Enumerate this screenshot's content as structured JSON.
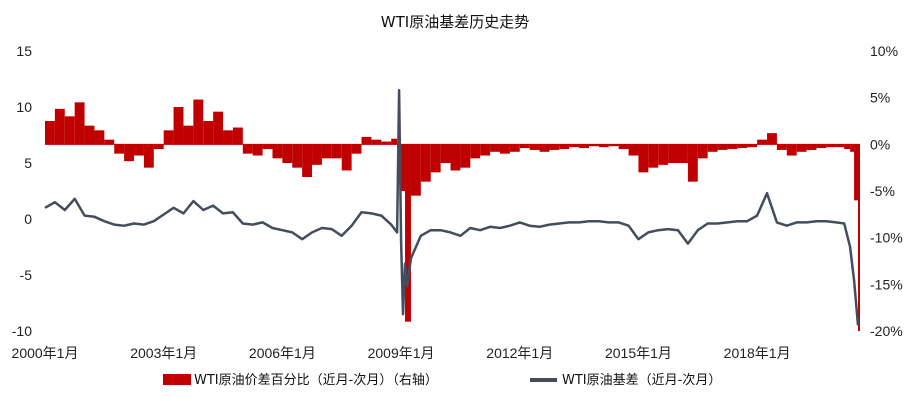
{
  "chart_data": {
    "type": "bar+line",
    "title": "WTI原油基差历史走势",
    "x_ticks": [
      "2000年1月",
      "2003年1月",
      "2006年1月",
      "2009年1月",
      "2012年1月",
      "2015年1月",
      "2018年1月"
    ],
    "x_range": [
      2000.0,
      2020.6
    ],
    "left_axis": {
      "ticks": [
        "15",
        "10",
        "5",
        "0",
        "-5",
        "-10"
      ],
      "ylim": [
        -10,
        15
      ]
    },
    "right_axis": {
      "ticks": [
        "10%",
        "5%",
        "0%",
        "-5%",
        "-10%",
        "-15%",
        "-20%"
      ],
      "ylim": [
        -20,
        10
      ]
    },
    "series": [
      {
        "name": "WTI原油价差百分比（近月-次月）（右轴）",
        "type": "bar",
        "axis": "right",
        "color": "#c00000",
        "x": [
          2000.0,
          2000.25,
          2000.5,
          2000.75,
          2001.0,
          2001.25,
          2001.5,
          2001.75,
          2002.0,
          2002.25,
          2002.5,
          2002.75,
          2003.0,
          2003.25,
          2003.5,
          2003.75,
          2004.0,
          2004.25,
          2004.5,
          2004.75,
          2005.0,
          2005.25,
          2005.5,
          2005.75,
          2006.0,
          2006.25,
          2006.5,
          2006.75,
          2007.0,
          2007.25,
          2007.5,
          2007.75,
          2008.0,
          2008.25,
          2008.5,
          2008.75,
          2008.9,
          2009.0,
          2009.1,
          2009.25,
          2009.5,
          2009.75,
          2010.0,
          2010.25,
          2010.5,
          2010.75,
          2011.0,
          2011.25,
          2011.5,
          2011.75,
          2012.0,
          2012.25,
          2012.5,
          2012.75,
          2013.0,
          2013.25,
          2013.5,
          2013.75,
          2014.0,
          2014.25,
          2014.5,
          2014.75,
          2015.0,
          2015.25,
          2015.5,
          2015.75,
          2016.0,
          2016.25,
          2016.5,
          2016.75,
          2017.0,
          2017.25,
          2017.5,
          2017.75,
          2018.0,
          2018.25,
          2018.5,
          2018.75,
          2019.0,
          2019.25,
          2019.5,
          2019.75,
          2020.0,
          2020.2,
          2020.35,
          2020.45,
          2020.55
        ],
        "values": [
          2.5,
          3.8,
          3.0,
          4.5,
          2.0,
          1.5,
          0.5,
          -1.0,
          -1.8,
          -1.2,
          -2.5,
          -0.5,
          1.5,
          4.0,
          2.0,
          4.8,
          2.5,
          3.5,
          1.5,
          1.8,
          -1.0,
          -1.2,
          -0.5,
          -1.5,
          -2.0,
          -2.5,
          -3.5,
          -2.2,
          -1.5,
          -1.5,
          -2.8,
          -1.0,
          0.8,
          0.5,
          0.3,
          0.6,
          -2.0,
          -5.0,
          -19.0,
          -5.5,
          -4.0,
          -3.0,
          -2.0,
          -2.8,
          -2.5,
          -1.5,
          -1.2,
          -0.8,
          -1.0,
          -0.8,
          -0.4,
          -0.6,
          -0.8,
          -0.6,
          -0.5,
          -0.3,
          -0.4,
          -0.2,
          -0.3,
          -0.2,
          -0.5,
          -1.2,
          -3.0,
          -2.5,
          -2.2,
          -2.0,
          -2.0,
          -4.0,
          -1.5,
          -0.8,
          -0.6,
          -0.5,
          -0.4,
          -0.3,
          0.5,
          1.2,
          -0.6,
          -1.2,
          -0.8,
          -0.6,
          -0.4,
          -0.3,
          -0.3,
          -0.5,
          -0.8,
          -6.0,
          -20.0
        ]
      },
      {
        "name": "WTI原油基差（近月-次月）",
        "type": "line",
        "axis": "left",
        "color": "#454d5c",
        "x": [
          2000.0,
          2000.25,
          2000.5,
          2000.75,
          2001.0,
          2001.25,
          2001.5,
          2001.75,
          2002.0,
          2002.25,
          2002.5,
          2002.75,
          2003.0,
          2003.25,
          2003.5,
          2003.75,
          2004.0,
          2004.25,
          2004.5,
          2004.75,
          2005.0,
          2005.25,
          2005.5,
          2005.75,
          2006.0,
          2006.25,
          2006.5,
          2006.75,
          2007.0,
          2007.25,
          2007.5,
          2007.75,
          2008.0,
          2008.25,
          2008.5,
          2008.75,
          2008.9,
          2008.95,
          2009.0,
          2009.05,
          2009.1,
          2009.15,
          2009.25,
          2009.5,
          2009.75,
          2010.0,
          2010.25,
          2010.5,
          2010.75,
          2011.0,
          2011.25,
          2011.5,
          2011.75,
          2012.0,
          2012.25,
          2012.5,
          2012.75,
          2013.0,
          2013.25,
          2013.5,
          2013.75,
          2014.0,
          2014.25,
          2014.5,
          2014.75,
          2015.0,
          2015.25,
          2015.5,
          2015.75,
          2016.0,
          2016.25,
          2016.5,
          2016.75,
          2017.0,
          2017.25,
          2017.5,
          2017.75,
          2018.0,
          2018.25,
          2018.5,
          2018.75,
          2019.0,
          2019.25,
          2019.5,
          2019.75,
          2020.0,
          2020.2,
          2020.35,
          2020.45,
          2020.55
        ],
        "values": [
          1.0,
          1.5,
          0.8,
          1.8,
          0.3,
          0.2,
          -0.2,
          -0.5,
          -0.6,
          -0.4,
          -0.5,
          -0.2,
          0.4,
          1.0,
          0.5,
          1.6,
          0.8,
          1.2,
          0.5,
          0.6,
          -0.4,
          -0.5,
          -0.3,
          -0.8,
          -1.0,
          -1.2,
          -1.8,
          -1.2,
          -0.8,
          -0.9,
          -1.5,
          -0.6,
          0.6,
          0.5,
          0.3,
          -0.5,
          -1.2,
          11.5,
          -2.0,
          -8.5,
          -4.0,
          -6.0,
          -3.5,
          -1.5,
          -1.0,
          -1.0,
          -1.2,
          -1.5,
          -0.8,
          -1.0,
          -0.7,
          -0.8,
          -0.6,
          -0.3,
          -0.6,
          -0.7,
          -0.5,
          -0.4,
          -0.3,
          -0.3,
          -0.2,
          -0.2,
          -0.3,
          -0.3,
          -0.6,
          -1.8,
          -1.2,
          -1.0,
          -0.9,
          -1.0,
          -2.2,
          -1.0,
          -0.4,
          -0.4,
          -0.3,
          -0.2,
          -0.2,
          0.3,
          2.3,
          -0.3,
          -0.6,
          -0.3,
          -0.3,
          -0.2,
          -0.2,
          -0.3,
          -0.4,
          -2.5,
          -5.5,
          -9.5
        ]
      }
    ],
    "legend": {
      "placement": "bottom",
      "items": [
        "WTI原油价差百分比（近月-次月）（右轴）",
        "WTI原油基差（近月-次月）"
      ]
    }
  }
}
